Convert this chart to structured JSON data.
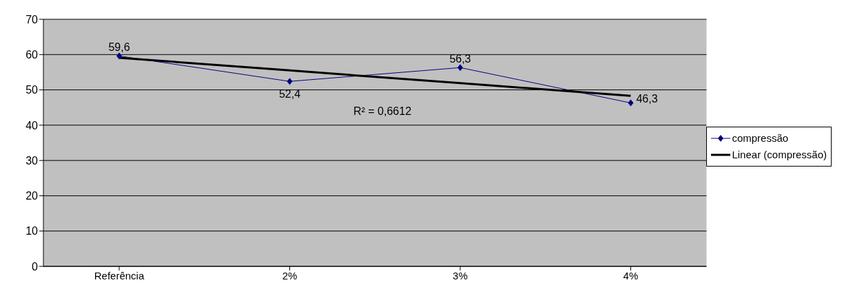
{
  "chart_data": {
    "type": "line",
    "categories": [
      "Referência",
      "2%",
      "3%",
      "4%"
    ],
    "series": [
      {
        "name": "compressão",
        "color": "#000080",
        "values": [
          59.6,
          52.4,
          56.3,
          46.3
        ],
        "value_labels": [
          "59,6",
          "52,4",
          "56,3",
          "46,3"
        ],
        "marker": "diamond"
      },
      {
        "name": "Linear (compressão)",
        "type": "line",
        "color": "#000000",
        "values": [
          59.1,
          55.5,
          51.9,
          48.3
        ],
        "marker": "none"
      }
    ],
    "annotations": [
      "R² = 0,6612"
    ],
    "ylim": [
      0,
      70
    ],
    "yticks": [
      0,
      10,
      20,
      30,
      40,
      50,
      60,
      70
    ],
    "grid": "y",
    "legend": "right"
  }
}
